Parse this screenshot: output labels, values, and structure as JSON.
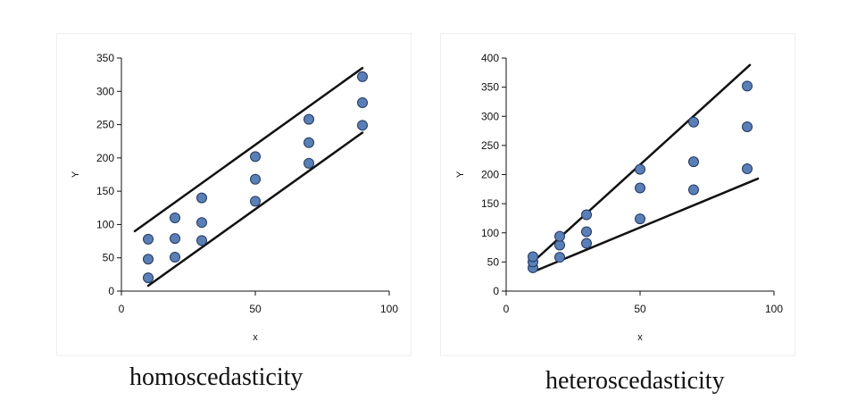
{
  "colors": {
    "point_fill": "#5b7fb5",
    "point_stroke": "#1f3864",
    "line": "#111111",
    "axis": "#111111"
  },
  "chart_data": [
    {
      "type": "scatter",
      "xlabel": "x",
      "ylabel": "Y",
      "xlim": [
        0,
        100
      ],
      "ylim": [
        0,
        350
      ],
      "xticks": [
        0,
        50,
        100
      ],
      "yticks": [
        0,
        50,
        100,
        150,
        200,
        250,
        300,
        350
      ],
      "grid": false,
      "legend": "none",
      "points": [
        {
          "x": 10,
          "y": 20
        },
        {
          "x": 10,
          "y": 48
        },
        {
          "x": 10,
          "y": 78
        },
        {
          "x": 20,
          "y": 51
        },
        {
          "x": 20,
          "y": 79
        },
        {
          "x": 20,
          "y": 110
        },
        {
          "x": 30,
          "y": 76
        },
        {
          "x": 30,
          "y": 103
        },
        {
          "x": 30,
          "y": 140
        },
        {
          "x": 50,
          "y": 135
        },
        {
          "x": 50,
          "y": 168
        },
        {
          "x": 50,
          "y": 202
        },
        {
          "x": 70,
          "y": 192
        },
        {
          "x": 70,
          "y": 223
        },
        {
          "x": 70,
          "y": 258
        },
        {
          "x": 90,
          "y": 249
        },
        {
          "x": 90,
          "y": 283
        },
        {
          "x": 90,
          "y": 322
        }
      ],
      "bounds": [
        {
          "x1": 5,
          "y1": 90,
          "x2": 90,
          "y2": 335
        },
        {
          "x1": 10,
          "y1": 8,
          "x2": 90,
          "y2": 238
        }
      ],
      "caption": "homoscedasticity"
    },
    {
      "type": "scatter",
      "xlabel": "x",
      "ylabel": "Y",
      "xlim": [
        0,
        100
      ],
      "ylim": [
        0,
        400
      ],
      "xticks": [
        0,
        50,
        100
      ],
      "yticks": [
        0,
        50,
        100,
        150,
        200,
        250,
        300,
        350,
        400
      ],
      "grid": false,
      "legend": "none",
      "points": [
        {
          "x": 10,
          "y": 40
        },
        {
          "x": 10,
          "y": 50
        },
        {
          "x": 10,
          "y": 59
        },
        {
          "x": 20,
          "y": 58
        },
        {
          "x": 20,
          "y": 79
        },
        {
          "x": 20,
          "y": 94
        },
        {
          "x": 30,
          "y": 82
        },
        {
          "x": 30,
          "y": 102
        },
        {
          "x": 30,
          "y": 131
        },
        {
          "x": 50,
          "y": 124
        },
        {
          "x": 50,
          "y": 177
        },
        {
          "x": 50,
          "y": 209
        },
        {
          "x": 70,
          "y": 174
        },
        {
          "x": 70,
          "y": 222
        },
        {
          "x": 70,
          "y": 290
        },
        {
          "x": 90,
          "y": 210
        },
        {
          "x": 90,
          "y": 282
        },
        {
          "x": 90,
          "y": 352
        }
      ],
      "bounds": [
        {
          "x1": 10,
          "y1": 50,
          "x2": 91,
          "y2": 388
        },
        {
          "x1": 10,
          "y1": 33,
          "x2": 94,
          "y2": 193
        }
      ],
      "caption": "heteroscedasticity"
    }
  ]
}
